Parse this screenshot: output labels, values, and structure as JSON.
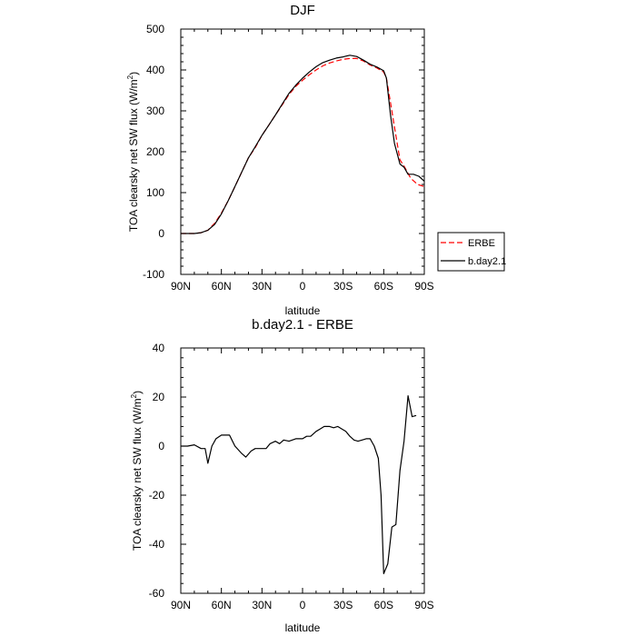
{
  "chart_data": [
    {
      "type": "line",
      "title": "DJF",
      "xlabel": "latitude",
      "ylabel": "TOA clearsky net SW flux (W/m",
      "ylabel_sup": "2",
      "ylabel_close": ")",
      "xlim": [
        90,
        -90
      ],
      "ylim": [
        -100,
        500
      ],
      "xticks": [
        90,
        60,
        30,
        0,
        -30,
        -60,
        -90
      ],
      "xtick_labels": [
        "90N",
        "60N",
        "30N",
        "0",
        "30S",
        "60S",
        "90S"
      ],
      "yticks": [
        -100,
        0,
        100,
        200,
        300,
        400,
        500
      ],
      "ytick_labels": [
        "-100",
        "0",
        "100",
        "200",
        "300",
        "400",
        "500"
      ],
      "legend_position": "right",
      "series": [
        {
          "name": "ERBE",
          "color": "#ff0000",
          "style": "dashed",
          "points": [
            [
              90,
              0
            ],
            [
              85,
              0
            ],
            [
              80,
              0
            ],
            [
              75,
              2
            ],
            [
              70,
              8
            ],
            [
              65,
              25
            ],
            [
              60,
              50
            ],
            [
              55,
              80
            ],
            [
              50,
              115
            ],
            [
              45,
              150
            ],
            [
              40,
              185
            ],
            [
              35,
              210
            ],
            [
              30,
              240
            ],
            [
              25,
              265
            ],
            [
              20,
              290
            ],
            [
              15,
              315
            ],
            [
              10,
              340
            ],
            [
              5,
              360
            ],
            [
              0,
              375
            ],
            [
              -5,
              388
            ],
            [
              -10,
              400
            ],
            [
              -15,
              410
            ],
            [
              -20,
              417
            ],
            [
              -25,
              422
            ],
            [
              -30,
              426
            ],
            [
              -35,
              428
            ],
            [
              -40,
              428
            ],
            [
              -45,
              422
            ],
            [
              -50,
              412
            ],
            [
              -55,
              405
            ],
            [
              -60,
              395
            ],
            [
              -62,
              380
            ],
            [
              -65,
              320
            ],
            [
              -68,
              260
            ],
            [
              -70,
              220
            ],
            [
              -72,
              180
            ],
            [
              -75,
              165
            ],
            [
              -80,
              135
            ],
            [
              -85,
              120
            ],
            [
              -90,
              115
            ]
          ]
        },
        {
          "name": "b.day2.1",
          "color": "#000000",
          "style": "solid",
          "points": [
            [
              90,
              0
            ],
            [
              85,
              0
            ],
            [
              80,
              0
            ],
            [
              75,
              2
            ],
            [
              70,
              8
            ],
            [
              65,
              22
            ],
            [
              60,
              48
            ],
            [
              55,
              80
            ],
            [
              50,
              115
            ],
            [
              45,
              150
            ],
            [
              40,
              185
            ],
            [
              35,
              212
            ],
            [
              30,
              240
            ],
            [
              25,
              265
            ],
            [
              20,
              290
            ],
            [
              15,
              317
            ],
            [
              10,
              343
            ],
            [
              5,
              363
            ],
            [
              0,
              380
            ],
            [
              -5,
              395
            ],
            [
              -10,
              408
            ],
            [
              -15,
              418
            ],
            [
              -20,
              424
            ],
            [
              -25,
              429
            ],
            [
              -30,
              432
            ],
            [
              -35,
              436
            ],
            [
              -40,
              433
            ],
            [
              -45,
              424
            ],
            [
              -50,
              414
            ],
            [
              -55,
              407
            ],
            [
              -60,
              398
            ],
            [
              -62,
              380
            ],
            [
              -65,
              290
            ],
            [
              -68,
              220
            ],
            [
              -72,
              170
            ],
            [
              -75,
              162
            ],
            [
              -78,
              145
            ],
            [
              -82,
              145
            ],
            [
              -86,
              140
            ],
            [
              -90,
              128
            ]
          ]
        }
      ]
    },
    {
      "type": "line",
      "title": "b.day2.1 - ERBE",
      "xlabel": "latitude",
      "ylabel": "TOA clearsky net SW flux (W/m",
      "ylabel_sup": "2",
      "ylabel_close": ")",
      "xlim": [
        90,
        -90
      ],
      "ylim": [
        -60,
        40
      ],
      "xticks": [
        90,
        60,
        30,
        0,
        -30,
        -60,
        -90
      ],
      "xtick_labels": [
        "90N",
        "60N",
        "30N",
        "0",
        "30S",
        "60S",
        "90S"
      ],
      "yticks": [
        -60,
        -40,
        -20,
        0,
        20,
        40
      ],
      "ytick_labels": [
        "-60",
        "-40",
        "-20",
        "0",
        "20",
        "40"
      ],
      "series": [
        {
          "name": "b.day2.1 - ERBE",
          "color": "#000000",
          "style": "solid",
          "points": [
            [
              90,
              0
            ],
            [
              85,
              0
            ],
            [
              80,
              0.5
            ],
            [
              75,
              -1
            ],
            [
              72,
              -1
            ],
            [
              70,
              -7
            ],
            [
              67,
              0
            ],
            [
              64,
              3
            ],
            [
              60,
              4.5
            ],
            [
              57,
              4.5
            ],
            [
              54,
              4.5
            ],
            [
              50,
              0
            ],
            [
              45,
              -3
            ],
            [
              42,
              -4.5
            ],
            [
              38,
              -2
            ],
            [
              35,
              -1
            ],
            [
              30,
              -1
            ],
            [
              27,
              -1
            ],
            [
              24,
              1
            ],
            [
              20,
              2
            ],
            [
              17,
              1
            ],
            [
              14,
              2.5
            ],
            [
              10,
              2
            ],
            [
              5,
              3
            ],
            [
              2,
              3
            ],
            [
              0,
              3
            ],
            [
              -3,
              4
            ],
            [
              -6,
              4
            ],
            [
              -10,
              6
            ],
            [
              -13,
              7
            ],
            [
              -16,
              8
            ],
            [
              -20,
              8
            ],
            [
              -23,
              7.5
            ],
            [
              -26,
              8
            ],
            [
              -29,
              7
            ],
            [
              -32,
              6
            ],
            [
              -35,
              4
            ],
            [
              -38,
              2.5
            ],
            [
              -41,
              2
            ],
            [
              -44,
              2.5
            ],
            [
              -47,
              3
            ],
            [
              -50,
              3
            ],
            [
              -53,
              0
            ],
            [
              -56,
              -5
            ],
            [
              -58,
              -20
            ],
            [
              -60,
              -52
            ],
            [
              -63,
              -48
            ],
            [
              -66,
              -33
            ],
            [
              -69,
              -32
            ],
            [
              -72,
              -10
            ],
            [
              -75,
              2
            ],
            [
              -78,
              20.5
            ],
            [
              -81,
              12
            ],
            [
              -84,
              12.5
            ]
          ]
        }
      ]
    }
  ]
}
